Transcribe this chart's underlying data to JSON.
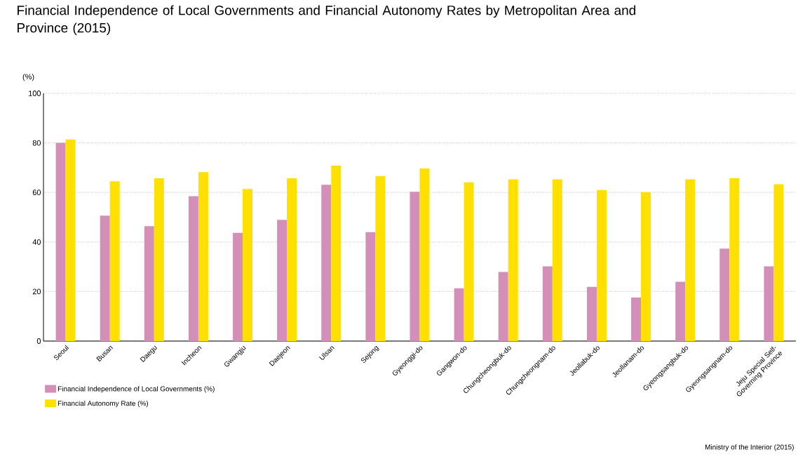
{
  "chart_data": {
    "type": "bar",
    "title": "Financial Independence of Local Governments and Financial Autonomy Rates by Metropolitan Area and Province (2015)",
    "ylabel": "(%)",
    "categories": [
      "Seoul",
      "Busan",
      "Daegu",
      "Incheon",
      "Gwangju",
      "Daejeon",
      "Ulsan",
      "Sejong",
      "Gyeonggi-do",
      "Gangwon-do",
      "Chungcheongbuk-do",
      "Chungcheongnam-do",
      "Jeollabuk-do",
      "Jeollanam-do",
      "Gyeongsangbuk-do",
      "Gyeongsangnam-do",
      "Jeju Special Self-Governing Province"
    ],
    "series": [
      {
        "name": "Financial Independence of Local Governments (%)",
        "color": "#d48fb9",
        "values": [
          80.0,
          50.6,
          46.4,
          58.5,
          43.7,
          48.9,
          63.1,
          44.0,
          60.3,
          21.3,
          27.9,
          30.2,
          21.9,
          17.6,
          23.9,
          37.3,
          30.2
        ]
      },
      {
        "name": "Financial Autonomy Rate (%)",
        "color": "#ffe000",
        "values": [
          81.4,
          64.5,
          65.7,
          68.2,
          61.4,
          65.7,
          70.8,
          66.6,
          69.7,
          64.1,
          65.3,
          65.3,
          61.0,
          60.1,
          65.3,
          65.8,
          63.3
        ]
      }
    ],
    "ylim": [
      0,
      100
    ],
    "yticks": [
      0,
      20,
      40,
      60,
      80,
      100
    ],
    "grid": "y",
    "legend": "bottom left",
    "annotations": [
      "Ministry of the Interior (2015)"
    ]
  }
}
